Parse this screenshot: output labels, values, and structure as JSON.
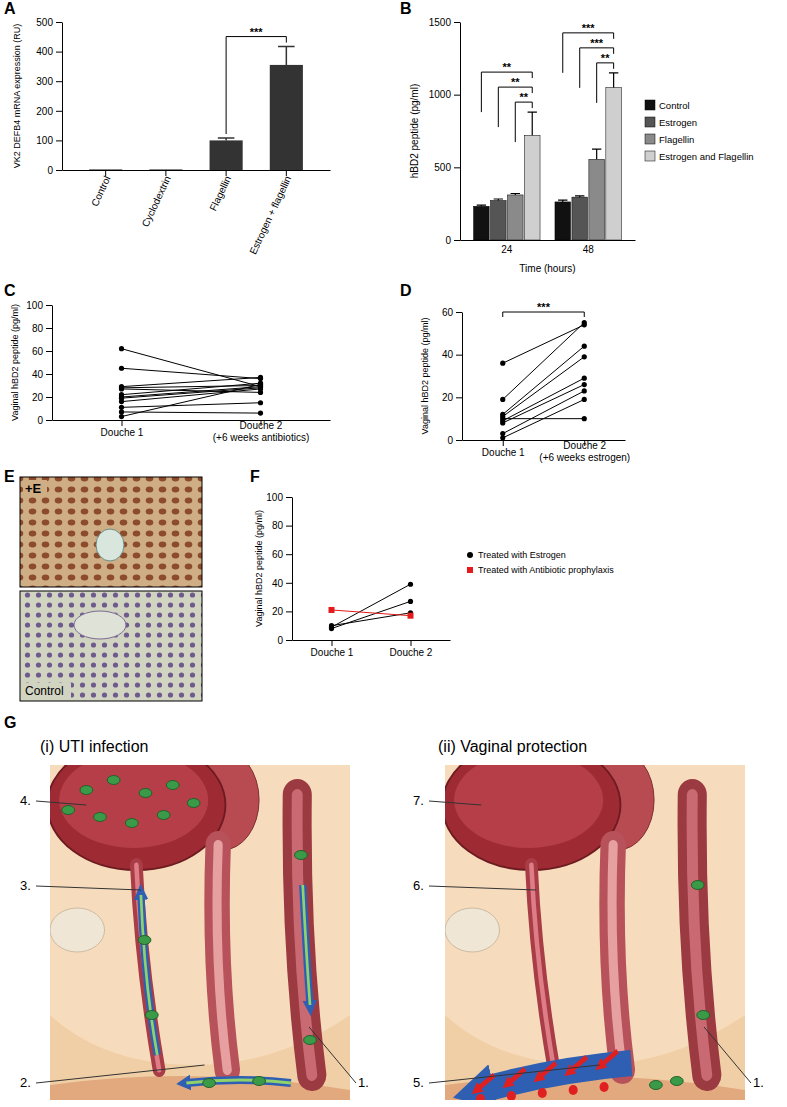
{
  "chart_data": [
    {
      "type": "bar",
      "title": "A",
      "y_label": "VK2 DEFB4 mRNA expression (RU)",
      "categories": [
        "Control",
        "Cyclodextrin",
        "Flagellin",
        "Estrogen + flagellin"
      ],
      "values": [
        2,
        2,
        100,
        355
      ],
      "errors": [
        0,
        0,
        8,
        62
      ],
      "color": "#333333",
      "ylim": [
        0,
        500
      ],
      "yticks": [
        0,
        100,
        200,
        300,
        400,
        500
      ],
      "annotations": [
        {
          "text": "***",
          "from": 2,
          "to": 3
        }
      ]
    },
    {
      "type": "bar",
      "title": "B",
      "x_label": "Time (hours)",
      "y_label": "hBD2 peptide (pg/ml)",
      "categories": [
        "24",
        "48"
      ],
      "series": [
        {
          "name": "Control",
          "color": "#111111",
          "values": [
            232,
            262
          ],
          "errors": [
            8,
            12
          ]
        },
        {
          "name": "Estrogen",
          "color": "#555555",
          "values": [
            272,
            295
          ],
          "errors": [
            10,
            8
          ]
        },
        {
          "name": "Flagellin",
          "color": "#8a8a8a",
          "values": [
            310,
            555
          ],
          "errors": [
            10,
            70
          ]
        },
        {
          "name": "Estrogen and Flagellin",
          "color": "#cfcfcf",
          "values": [
            720,
            1050
          ],
          "errors": [
            160,
            100
          ]
        }
      ],
      "ylim": [
        0,
        1500
      ],
      "yticks": [
        0,
        500,
        1000,
        1500
      ],
      "legend": "right",
      "annotations": [
        {
          "text": "**",
          "category": 0,
          "from": 0,
          "to": 3
        },
        {
          "text": "**",
          "category": 0,
          "from": 1,
          "to": 3
        },
        {
          "text": "**",
          "category": 0,
          "from": 2,
          "to": 3
        },
        {
          "text": "***",
          "category": 1,
          "from": 0,
          "to": 3
        },
        {
          "text": "***",
          "category": 1,
          "from": 1,
          "to": 3
        },
        {
          "text": "**",
          "category": 1,
          "from": 2,
          "to": 3
        }
      ]
    },
    {
      "type": "line",
      "title": "C",
      "y_label": "Vaginal hBD2 peptide (pg/ml)",
      "categories": [
        "Douche 1",
        "Douche 2\n(+6 weeks antibiotics)"
      ],
      "ylim": [
        0,
        100
      ],
      "yticks": [
        0,
        20,
        40,
        60,
        80,
        100
      ],
      "marker": "circle",
      "color": "#000000",
      "series": [
        {
          "values": [
            62,
            29
          ]
        },
        {
          "values": [
            45,
            36
          ]
        },
        {
          "values": [
            29,
            37
          ]
        },
        {
          "values": [
            28,
            30
          ]
        },
        {
          "values": [
            27,
            24
          ]
        },
        {
          "values": [
            22,
            32
          ]
        },
        {
          "values": [
            20,
            29
          ]
        },
        {
          "values": [
            19,
            28
          ]
        },
        {
          "values": [
            16,
            27
          ]
        },
        {
          "values": [
            11,
            15
          ]
        },
        {
          "values": [
            7,
            6
          ]
        },
        {
          "values": [
            3,
            31
          ]
        }
      ]
    },
    {
      "type": "line",
      "title": "D",
      "y_label": "Vaginal hBD2 peptide (pg/ml)",
      "categories": [
        "Douche 1",
        "Douche 2\n(+6 weeks estrogen)"
      ],
      "ylim": [
        0,
        60
      ],
      "yticks": [
        0,
        20,
        40,
        60
      ],
      "marker": "circle",
      "color": "#000000",
      "series": [
        {
          "values": [
            36,
            54
          ]
        },
        {
          "values": [
            19,
            55
          ]
        },
        {
          "values": [
            12,
            44
          ]
        },
        {
          "values": [
            11,
            39
          ]
        },
        {
          "values": [
            10,
            10
          ]
        },
        {
          "values": [
            9,
            29
          ]
        },
        {
          "values": [
            8,
            26
          ]
        },
        {
          "values": [
            3,
            23
          ]
        },
        {
          "values": [
            1,
            19
          ]
        }
      ],
      "annotations": [
        {
          "text": "***",
          "from": 0,
          "to": 1
        }
      ]
    },
    {
      "type": "line",
      "title": "F",
      "y_label": "Vaginal hBD2 peptide (pg/ml)",
      "categories": [
        "Douche 1",
        "Douche 2"
      ],
      "ylim": [
        0,
        100
      ],
      "yticks": [
        0,
        20,
        40,
        60,
        80,
        100
      ],
      "marker": "circle",
      "color": "#000000",
      "legend": "right",
      "series": [
        {
          "name": "Treated with Estrogen",
          "color": "#000000",
          "values": [
            9,
            39
          ]
        },
        {
          "color": "#000000",
          "values": [
            8,
            27
          ]
        },
        {
          "color": "#000000",
          "values": [
            10,
            19
          ]
        },
        {
          "name": "Treated with Antibiotic prophylaxis",
          "color": "#e41a1c",
          "marker": "square",
          "values": [
            21,
            17
          ]
        }
      ]
    }
  ],
  "panel_e": {
    "label": "E",
    "top_label": "+E",
    "bottom_label": "Control"
  },
  "panel_g": {
    "label": "G",
    "left_title": "(i) UTI infection",
    "right_title": "(ii) Vaginal protection",
    "left_labels": [
      "4.",
      "3.",
      "2.",
      "1."
    ],
    "right_labels": [
      "7.",
      "6.",
      "5.",
      "1."
    ]
  }
}
